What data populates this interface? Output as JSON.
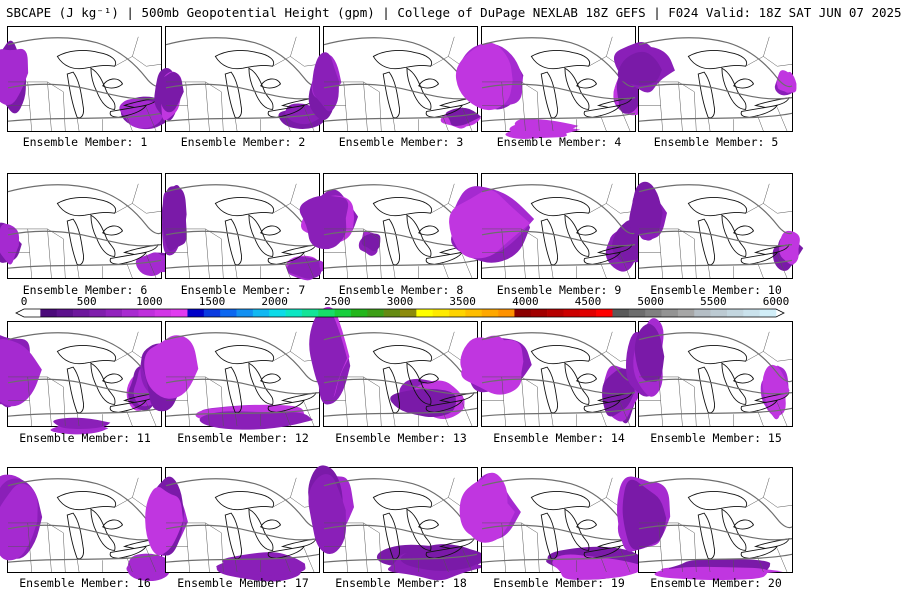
{
  "header": {
    "title": "SBCAPE (J kg⁻¹) | 500mb Geopotential Height (gpm) | College of DuPage NEXLAB 18Z GEFS | F024 Valid: 18Z SAT JUN 07 2025"
  },
  "legend": {
    "tick_labels": [
      "0",
      "500",
      "1000",
      "1500",
      "2000",
      "2500",
      "3000",
      "3500",
      "4000",
      "4500",
      "5000",
      "5500",
      "6000"
    ],
    "colors": [
      "#ffffff",
      "#4b0a7a",
      "#5c118c",
      "#6d179c",
      "#7f1eac",
      "#9222bd",
      "#a82bd0",
      "#bf2fdc",
      "#d236e6",
      "#e13bf0",
      "#0000c8",
      "#0a3ae0",
      "#0c67f0",
      "#1290f2",
      "#12b8f2",
      "#0ddbe8",
      "#0ce6c3",
      "#13e497",
      "#17dc69",
      "#17cf3d",
      "#23b61b",
      "#3c9e16",
      "#648a12",
      "#8c8a0b",
      "#ffff00",
      "#ffea00",
      "#ffd400",
      "#ffbe00",
      "#ffa800",
      "#ff9200",
      "#8b0000",
      "#a10000",
      "#b60000",
      "#cc0000",
      "#e00000",
      "#ff0000",
      "#5a5a5a",
      "#6d6d6d",
      "#808080",
      "#939393",
      "#a6a6a6",
      "#b5bec5",
      "#bccad2",
      "#c3d6df",
      "#cae2ec",
      "#d1eef8"
    ]
  },
  "panels": [
    {
      "label": "Ensemble Member: 1"
    },
    {
      "label": "Ensemble Member: 2"
    },
    {
      "label": "Ensemble Member: 3"
    },
    {
      "label": "Ensemble Member: 4"
    },
    {
      "label": "Ensemble Member: 5"
    },
    {
      "label": "Ensemble Member: 6"
    },
    {
      "label": "Ensemble Member: 7"
    },
    {
      "label": "Ensemble Member: 8"
    },
    {
      "label": "Ensemble Member: 9"
    },
    {
      "label": "Ensemble Member: 10"
    },
    {
      "label": "Ensemble Member: 11"
    },
    {
      "label": "Ensemble Member: 12"
    },
    {
      "label": "Ensemble Member: 13"
    },
    {
      "label": "Ensemble Member: 14"
    },
    {
      "label": "Ensemble Member: 15"
    },
    {
      "label": "Ensemble Member: 16"
    },
    {
      "label": "Ensemble Member: 17"
    },
    {
      "label": "Ensemble Member: 18"
    },
    {
      "label": "Ensemble Member: 19"
    },
    {
      "label": "Ensemble Member: 20"
    }
  ]
}
